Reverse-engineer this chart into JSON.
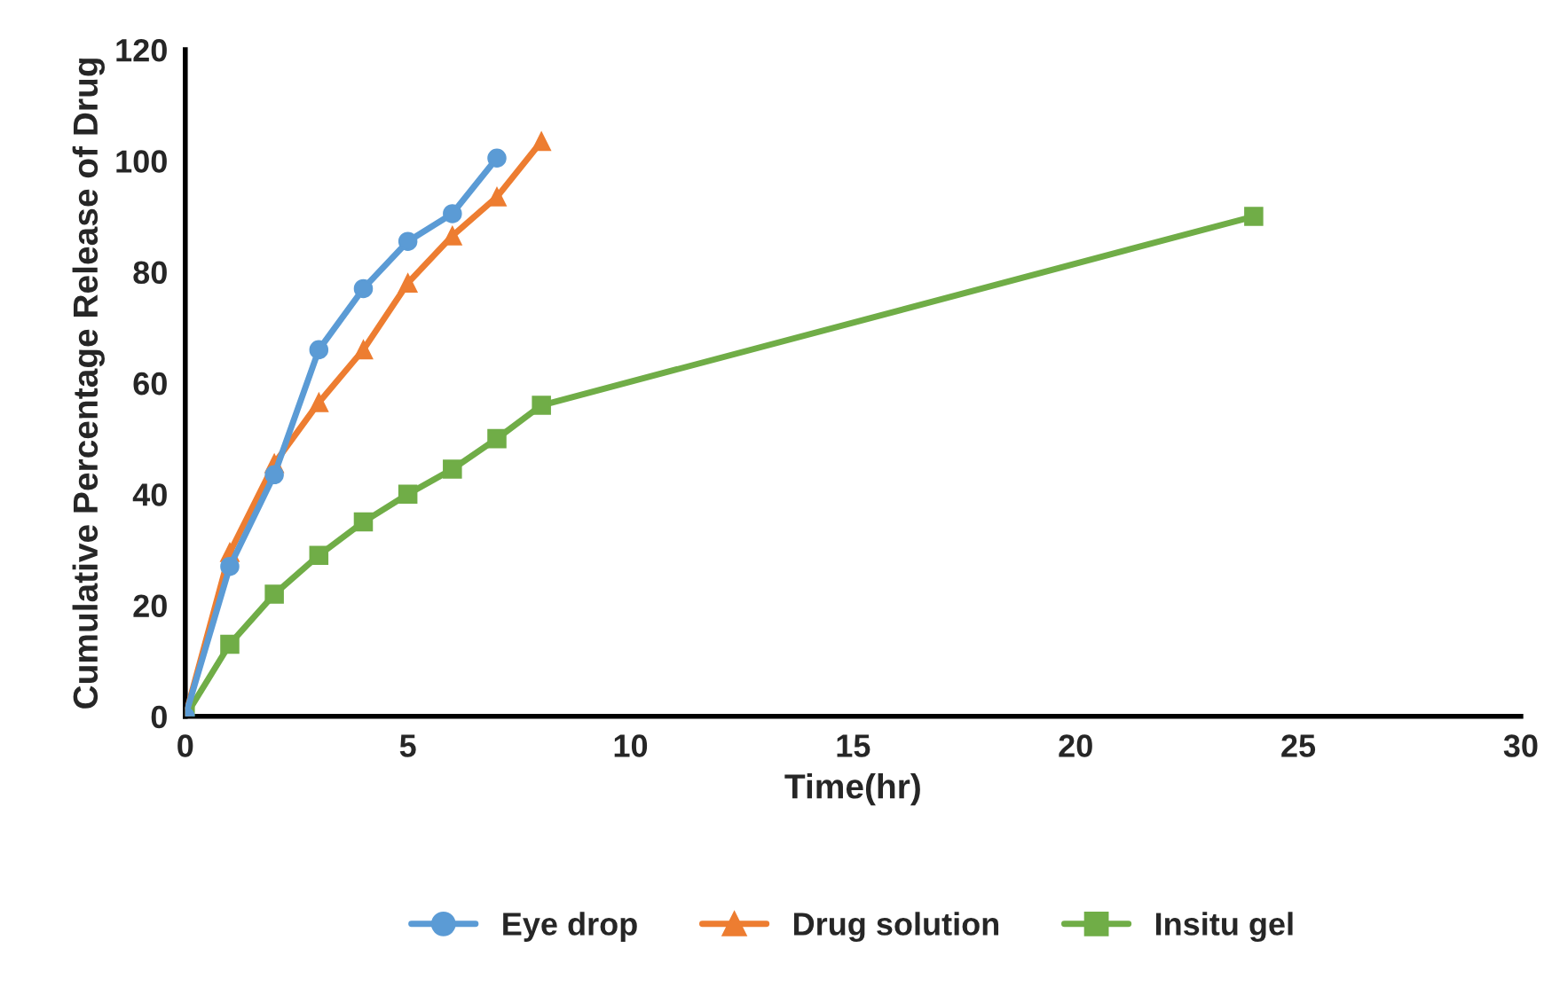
{
  "chart_data": {
    "type": "line",
    "xlabel": "Time(hr)",
    "ylabel": "Cumulative Percentage Release of Drug",
    "xlim": [
      0,
      30
    ],
    "xticks": [
      0,
      5,
      10,
      15,
      20,
      25,
      30
    ],
    "ylim": [
      0,
      120
    ],
    "yticks": [
      0,
      20,
      40,
      60,
      80,
      100,
      120
    ],
    "grid": false,
    "legend": "bottom",
    "series": [
      {
        "name": "Eye drop",
        "color": "#5b9bd5",
        "marker": "circle",
        "x": [
          0,
          1,
          2,
          3,
          4,
          5,
          6,
          7
        ],
        "values": [
          0,
          27,
          43.5,
          66,
          77,
          85.5,
          90.5,
          100.5
        ]
      },
      {
        "name": "Drug solution",
        "color": "#ed7d31",
        "marker": "triangle",
        "x": [
          0,
          1,
          2,
          3,
          4,
          5,
          6,
          7,
          8
        ],
        "values": [
          0,
          29.5,
          45.5,
          56.5,
          66,
          78,
          86.5,
          93.5,
          103.5
        ]
      },
      {
        "name": "Insitu gel",
        "color": "#70ad47",
        "marker": "square",
        "x": [
          0,
          1,
          2,
          3,
          4,
          5,
          6,
          7,
          8,
          24
        ],
        "values": [
          0,
          13,
          22,
          29,
          35,
          40,
          44.5,
          50,
          56,
          90
        ]
      }
    ]
  }
}
